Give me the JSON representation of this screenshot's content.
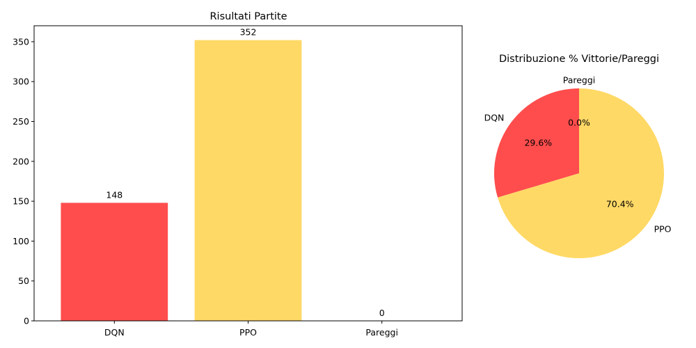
{
  "chart_data": [
    {
      "type": "bar",
      "title": "Risultati Partite",
      "xlabel": "",
      "ylabel": "",
      "categories": [
        "DQN",
        "PPO",
        "Pareggi"
      ],
      "values": [
        148,
        352,
        0
      ],
      "value_labels": [
        "148",
        "352",
        "0"
      ],
      "colors": [
        "#ff4d4d",
        "#ffd966",
        "#cccccc"
      ],
      "ylim": [
        0,
        370
      ],
      "yticks": [
        0,
        50,
        100,
        150,
        200,
        250,
        300,
        350
      ],
      "grid": false,
      "legend": false
    },
    {
      "type": "pie",
      "title": "Distribuzione % Vittorie/Pareggi",
      "labels": [
        "DQN",
        "PPO",
        "Pareggi"
      ],
      "values": [
        148,
        352,
        0
      ],
      "percent_labels": [
        "29.6%",
        "70.4%",
        "0.0%"
      ],
      "colors": [
        "#ff4d4d",
        "#ffd966",
        "#cccccc"
      ],
      "start_angle": 90,
      "direction": "counterclockwise"
    }
  ]
}
